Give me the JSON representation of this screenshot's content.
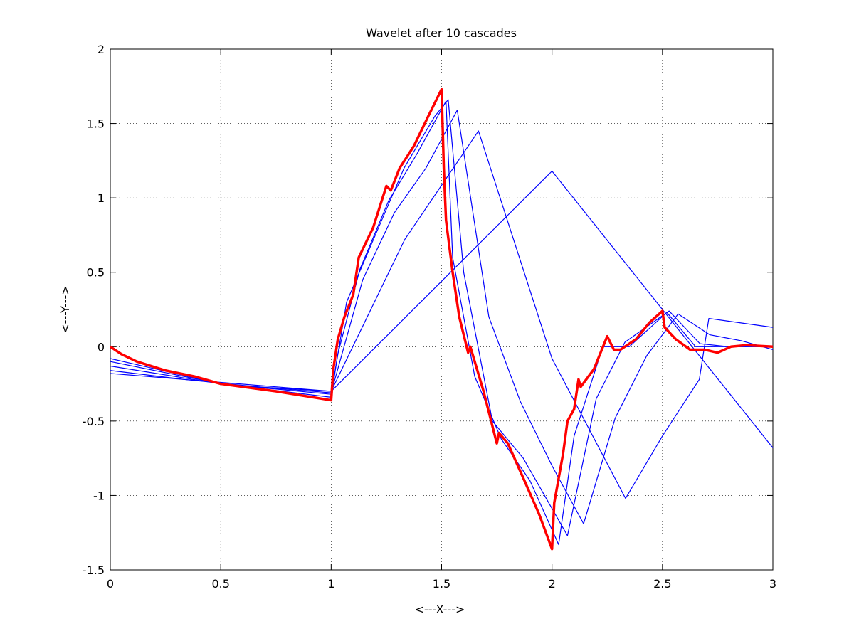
{
  "chart_data": {
    "type": "line",
    "title": "Wavelet after 10 cascades",
    "x_label": "<---X--->",
    "y_label": "<---Y--->",
    "xlim": [
      0,
      3
    ],
    "ylim": [
      -1.5,
      2
    ],
    "xticks": [
      0,
      0.5,
      1,
      1.5,
      2,
      2.5,
      3
    ],
    "yticks": [
      -1.5,
      -1,
      -0.5,
      0,
      0.5,
      1,
      1.5,
      2
    ],
    "grid": true,
    "series": [
      {
        "color": "#0000ff",
        "line_width": 1.2,
        "x": [
          0,
          1,
          2,
          3
        ],
        "values": [
          -0.18,
          -0.3,
          1.18,
          -0.68
        ]
      },
      {
        "color": "#0000ff",
        "line_width": 1.2,
        "x": [
          0,
          0.333,
          0.667,
          1,
          1.333,
          1.667,
          2,
          2.333,
          2.5,
          2.667,
          2.71,
          3
        ],
        "values": [
          -0.16,
          -0.22,
          -0.27,
          -0.3,
          0.72,
          1.45,
          -0.08,
          -1.02,
          -0.6,
          -0.22,
          0.19,
          0.13
        ]
      },
      {
        "color": "#0000ff",
        "line_width": 1.2,
        "x": [
          0,
          0.5,
          1,
          1.143,
          1.286,
          1.429,
          1.571,
          1.714,
          1.857,
          2,
          2.143,
          2.286,
          2.429,
          2.571,
          2.714,
          2.857,
          3
        ],
        "values": [
          -0.13,
          -0.25,
          -0.31,
          0.45,
          0.9,
          1.2,
          1.59,
          0.2,
          -0.37,
          -0.8,
          -1.19,
          -0.48,
          -0.06,
          0.22,
          0.08,
          0.04,
          -0.02
        ]
      },
      {
        "color": "#0000ff",
        "line_width": 1.2,
        "x": [
          0,
          0.5,
          1,
          1.07,
          1.2,
          1.33,
          1.47,
          1.53,
          1.6,
          1.73,
          1.87,
          2.07,
          2.2,
          2.33,
          2.53,
          2.67,
          2.8,
          3
        ],
        "values": [
          -0.1,
          -0.25,
          -0.32,
          0.3,
          0.75,
          1.2,
          1.55,
          1.66,
          0.5,
          -0.5,
          -0.75,
          -1.27,
          -0.35,
          0.03,
          0.24,
          0.02,
          0,
          0
        ]
      },
      {
        "color": "#0000ff",
        "line_width": 1.2,
        "x": [
          0,
          0.5,
          1,
          1.03,
          1.13,
          1.26,
          1.39,
          1.52,
          1.55,
          1.65,
          1.77,
          1.9,
          2.03,
          2.1,
          2.23,
          2.35,
          2.52,
          2.65,
          2.8,
          3
        ],
        "values": [
          -0.08,
          -0.25,
          -0.34,
          -0.05,
          0.52,
          0.98,
          1.3,
          1.65,
          0.6,
          -0.2,
          -0.62,
          -0.9,
          -1.33,
          -0.6,
          0,
          0,
          0.23,
          0,
          0,
          0
        ]
      },
      {
        "color": "#ff0000",
        "line_width": 3.5,
        "x": [
          0,
          0.05,
          0.12,
          0.25,
          0.38,
          0.5,
          0.75,
          1,
          1.01,
          1.03,
          1.06,
          1.1,
          1.125,
          1.19,
          1.25,
          1.27,
          1.31,
          1.375,
          1.44,
          1.5,
          1.51,
          1.52,
          1.55,
          1.58,
          1.62,
          1.63,
          1.69,
          1.75,
          1.76,
          1.8,
          1.875,
          1.94,
          2,
          2.01,
          2.05,
          2.07,
          2.1,
          2.12,
          2.13,
          2.19,
          2.25,
          2.28,
          2.31,
          2.38,
          2.44,
          2.5,
          2.51,
          2.56,
          2.625,
          2.69,
          2.75,
          2.81,
          2.88,
          3
        ],
        "values": [
          0,
          -0.05,
          -0.1,
          -0.16,
          -0.2,
          -0.25,
          -0.3,
          -0.36,
          -0.15,
          0.05,
          0.2,
          0.35,
          0.6,
          0.8,
          1.08,
          1.05,
          1.2,
          1.35,
          1.55,
          1.73,
          1.2,
          0.85,
          0.5,
          0.2,
          -0.04,
          0,
          -0.3,
          -0.65,
          -0.58,
          -0.65,
          -0.9,
          -1.12,
          -1.36,
          -1.05,
          -0.72,
          -0.5,
          -0.42,
          -0.22,
          -0.27,
          -0.15,
          0.07,
          -0.02,
          -0.02,
          0.05,
          0.16,
          0.24,
          0.13,
          0.05,
          -0.02,
          -0.02,
          -0.04,
          0,
          0.01,
          0
        ]
      }
    ]
  }
}
